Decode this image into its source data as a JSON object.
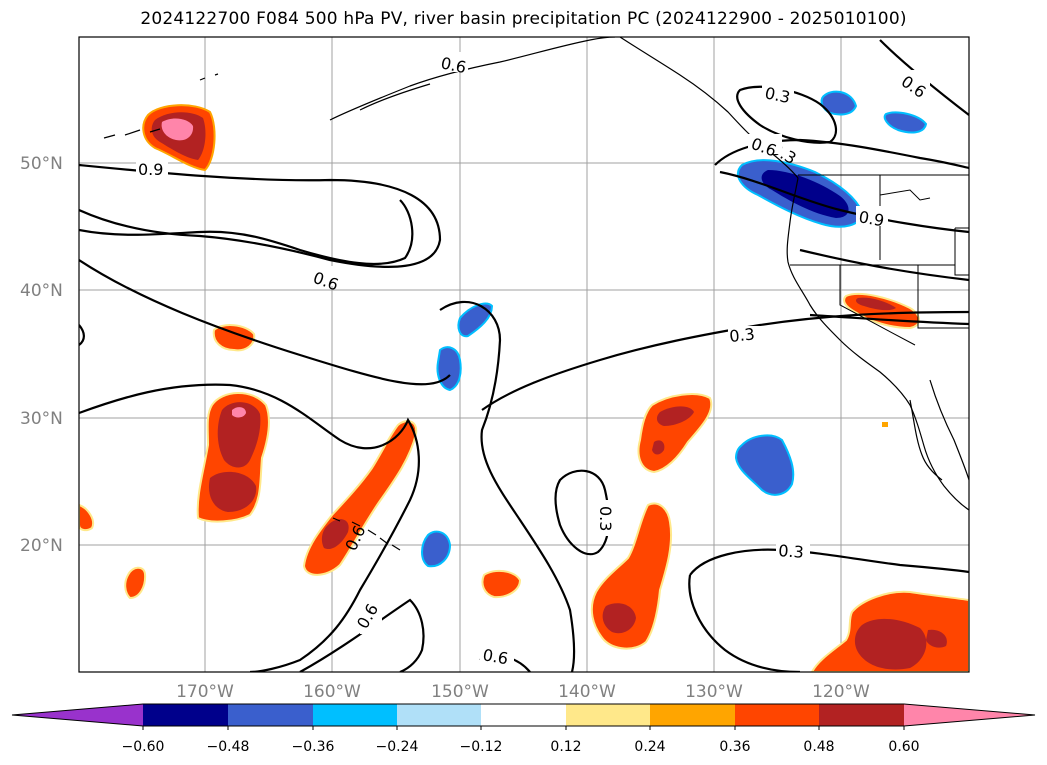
{
  "title": "2024122700 F084 500 hPa PV, river basin precipitation PC (2024122900 - 2025010100)",
  "latitude_labels": [
    "50°N",
    "40°N",
    "30°N",
    "20°N"
  ],
  "longitude_labels": [
    "170°W",
    "160°W",
    "150°W",
    "140°W",
    "130°W",
    "120°W"
  ],
  "contour_labels": [
    "0.6",
    "0.9",
    "0.6",
    "0.3",
    "0.3",
    "0.6",
    "0.9",
    "0.3",
    "0.3",
    "0.3",
    "0.6",
    "0.6",
    "0.6",
    "0.6"
  ],
  "colorbar": {
    "tick_labels": [
      "−0.60",
      "−0.48",
      "−0.36",
      "−0.24",
      "−0.12",
      "0.12",
      "0.24",
      "0.36",
      "0.48",
      "0.60"
    ],
    "colors": [
      "#9932cc",
      "#00008b",
      "#3a5fcd",
      "#00bfff",
      "#b0e0f8",
      "#ffffff",
      "#ffe88a",
      "#ffa500",
      "#ff4500",
      "#b22222",
      "#ff85aa"
    ]
  }
}
